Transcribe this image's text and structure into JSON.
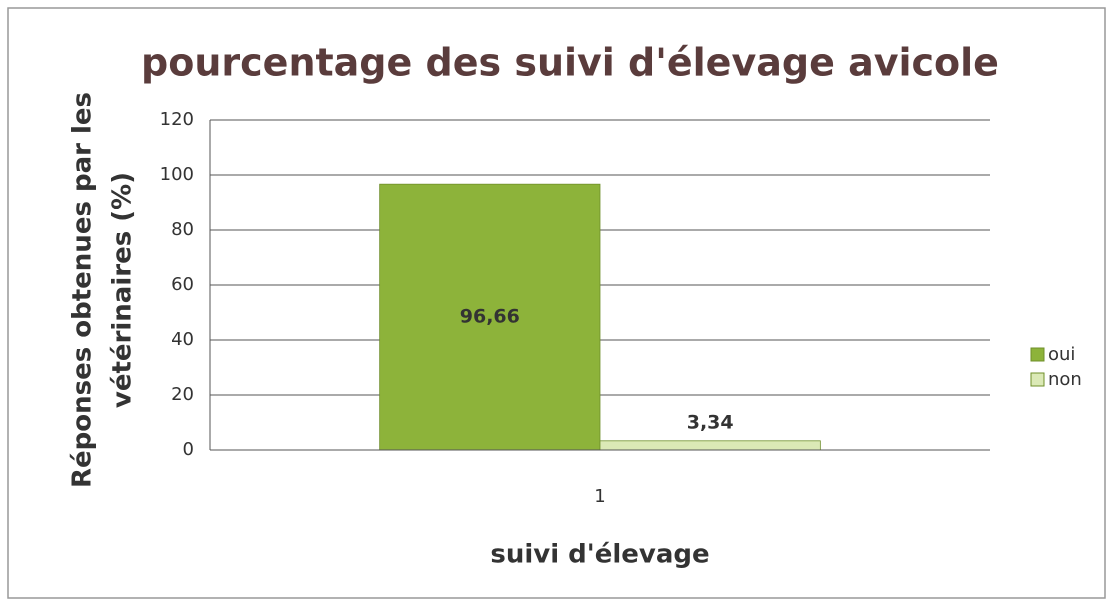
{
  "chart_data": {
    "type": "bar",
    "title": "pourcentage des suivi d'élevage avicole",
    "xlabel": "suivi d'élevage",
    "ylabel": [
      "Réponses obtenues par les",
      "vétérinaires (%)"
    ],
    "categories": [
      "1"
    ],
    "series": [
      {
        "name": "oui",
        "color": "#8db33a",
        "values": [
          96.66
        ],
        "value_labels": [
          "96,66"
        ]
      },
      {
        "name": "non",
        "color": "#dbe9b6",
        "values": [
          3.34
        ],
        "value_labels": [
          "3,34"
        ]
      }
    ],
    "ylim": [
      0,
      120
    ],
    "yticks": [
      0,
      20,
      40,
      60,
      80,
      100,
      120
    ],
    "grid": true,
    "legend": "right"
  }
}
